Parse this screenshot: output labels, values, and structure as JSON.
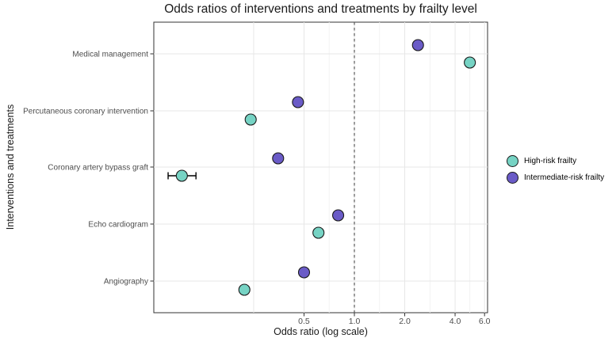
{
  "chart_data": {
    "type": "scatter",
    "subtype": "horizontal-dot-plot-forest",
    "title": "Odds ratios of interventions and treatments by frailty level",
    "xlabel": "Odds ratio (log scale)",
    "ylabel": "Interventions and treatments",
    "x_scale": "log",
    "x_ticks": [
      "0.5",
      "1.0",
      "2.0",
      "4.0",
      "6.0"
    ],
    "x_tick_values": [
      0.5,
      1.0,
      2.0,
      4.0,
      6.0
    ],
    "x_range_approx": [
      0.06,
      6.5
    ],
    "reference_line_x": 1.0,
    "grid": true,
    "legend_position": "right",
    "categories": [
      "Medical management",
      "Percutaneous coronary intervention",
      "Coronary artery bypass graft",
      "Echo cardiogram",
      "Angiography"
    ],
    "series": [
      {
        "name": "High-risk frailty",
        "color": "#76d3c4",
        "values": [
          4.9,
          0.24,
          0.093,
          0.61,
          0.22
        ],
        "ci_low": [
          null,
          null,
          0.077,
          null,
          null
        ],
        "ci_high": [
          null,
          null,
          0.113,
          null,
          null
        ]
      },
      {
        "name": "Intermediate-risk frailty",
        "color": "#6a5bc7",
        "values": [
          2.4,
          0.46,
          0.35,
          0.8,
          0.5
        ],
        "ci_low": [
          null,
          null,
          null,
          null,
          null
        ],
        "ci_high": [
          null,
          null,
          null,
          null,
          null
        ]
      }
    ]
  },
  "colors": {
    "point_stroke": "#1a1a1a",
    "ref_line": "#5a5a5a",
    "grid_major": "#e7e7e7",
    "grid_minor": "#f2f2f2",
    "panel_border": "#333333",
    "tick_mark": "#333333",
    "tick_text": "#4d4d4d",
    "error_bar": "#000000"
  }
}
